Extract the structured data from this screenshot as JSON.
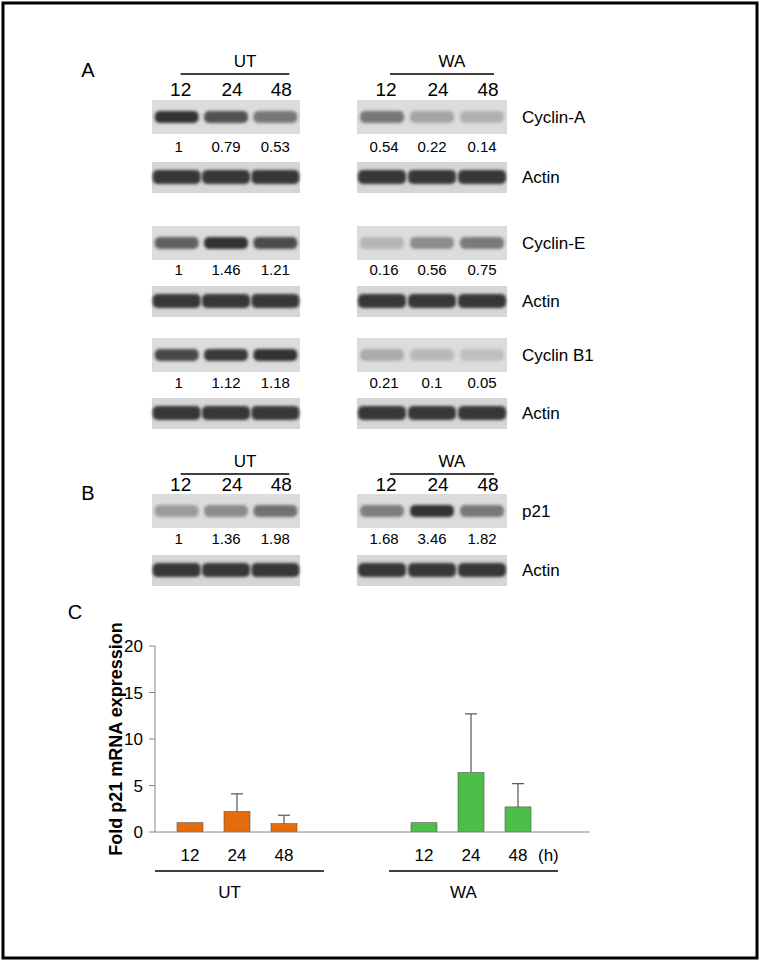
{
  "panel_c_label": "C",
  "blot_panels": [
    {
      "label": "A",
      "groups": [
        "UT",
        "WA"
      ],
      "lanes": [
        "12",
        "24",
        "48"
      ],
      "rows": [
        {
          "protein": "Cyclin-A",
          "values": [
            1,
            0.79,
            0.53,
            0.54,
            0.22,
            0.14
          ],
          "loading": "Actin"
        },
        {
          "protein": "Cyclin-E",
          "values": [
            1,
            1.46,
            1.21,
            0.16,
            0.56,
            0.75
          ],
          "loading": "Actin"
        },
        {
          "protein": "Cyclin B1",
          "values": [
            1,
            1.12,
            1.18,
            0.21,
            0.1,
            0.05
          ],
          "loading": "Actin"
        }
      ]
    },
    {
      "label": "B",
      "groups": [
        "UT",
        "WA"
      ],
      "lanes": [
        "12",
        "24",
        "48"
      ],
      "rows": [
        {
          "protein": "p21",
          "values": [
            1,
            1.36,
            1.98,
            1.68,
            3.46,
            1.82
          ],
          "loading": "Actin"
        }
      ]
    }
  ],
  "chart_data": {
    "type": "bar",
    "y_label": "Fold p21 mRNA expression",
    "categories": [
      "12",
      "24",
      "48",
      "12",
      "24",
      "48"
    ],
    "x_unit": "(h)",
    "ylim": [
      0,
      20
    ],
    "yticks": [
      0,
      5,
      10,
      15,
      20
    ],
    "series": [
      {
        "name": "UT",
        "color": "#E46C0A",
        "values": [
          1,
          2.2,
          0.9,
          null,
          null,
          null
        ],
        "errors": [
          null,
          1.9,
          0.9,
          null,
          null,
          null
        ]
      },
      {
        "name": "WA",
        "color": "#4DBE4A",
        "values": [
          null,
          null,
          null,
          1,
          6.4,
          2.7
        ],
        "errors": [
          null,
          null,
          null,
          null,
          6.3,
          2.5
        ]
      }
    ]
  }
}
